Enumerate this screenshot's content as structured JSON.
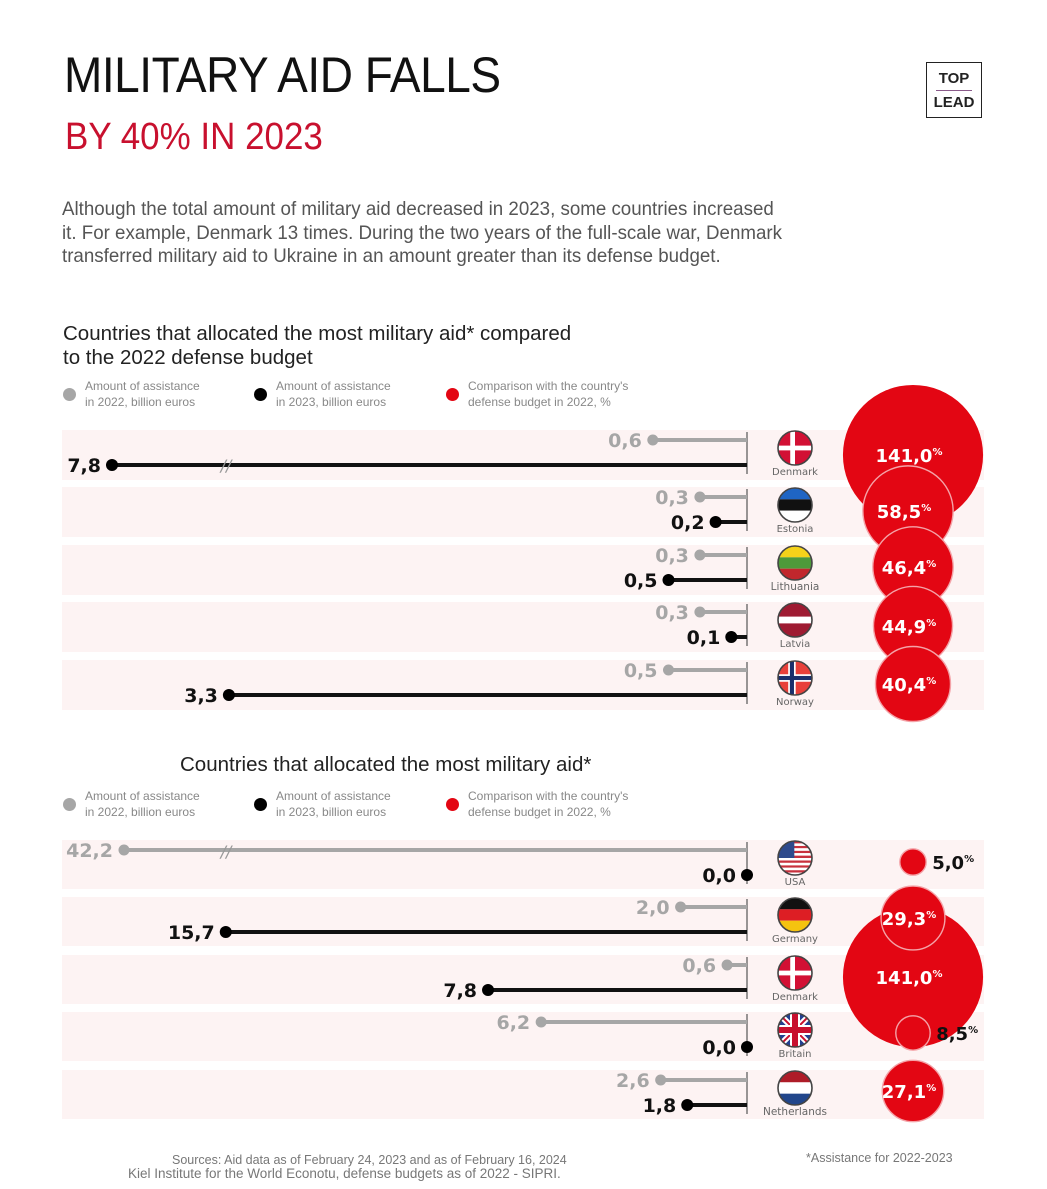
{
  "header": {
    "title": "MILITARY AID FALLS",
    "subtitle": "BY 40% IN 2023",
    "logo_top": "TOP",
    "logo_bottom": "LEAD",
    "intro": "Although the total amount of military aid decreased in 2023, some countries increased it. For example, Denmark 13 times. During the two years of the full-scale war, Denmark transferred military aid to Ukraine in an amount greater than its defense budget."
  },
  "colors": {
    "accent_red": "#e30613",
    "gray_2022": "#a6a6a6",
    "black_2023": "#111111",
    "row_bg": "#fdf3f3"
  },
  "chart_data": [
    {
      "type": "dumbbell",
      "title_line1": "Countries that allocated the most military aid* compared",
      "title_line2": "to the 2022 defense budget",
      "legend": [
        {
          "name": "Amount of assistance in 2022, billion euros",
          "line1": "Amount of assistance",
          "line2": "in 2022, billion euros",
          "color": "#a6a6a6"
        },
        {
          "name": "Amount of assistance in 2023, billion euros",
          "line1": "Amount of assistance",
          "line2": "in 2023, billion euros",
          "color": "#000000"
        },
        {
          "name": "Comparison with the country's defense budget in 2022, %",
          "line1": "Comparison with the country's",
          "line2": "defense budget in 2022, %",
          "color": "#e30613"
        }
      ],
      "axis_break_above": 3.5,
      "rows": [
        {
          "country": "Denmark",
          "flag": "denmark-flag",
          "v2022": 0.6,
          "v2023": 7.8,
          "label2022": "0,6",
          "label2023": "7,8",
          "pct": 141.0,
          "pct_label": "141,0",
          "pct_sign": "%"
        },
        {
          "country": "Estonia",
          "flag": "estonia-flag",
          "v2022": 0.3,
          "v2023": 0.2,
          "label2022": "0,3",
          "label2023": "0,2",
          "pct": 58.5,
          "pct_label": "58,5",
          "pct_sign": "%"
        },
        {
          "country": "Lithuania",
          "flag": "lithuania-flag",
          "v2022": 0.3,
          "v2023": 0.5,
          "label2022": "0,3",
          "label2023": "0,5",
          "pct": 46.4,
          "pct_label": "46,4",
          "pct_sign": "%"
        },
        {
          "country": "Latvia",
          "flag": "latvia-flag",
          "v2022": 0.3,
          "v2023": 0.1,
          "label2022": "0,3",
          "label2023": "0,1",
          "pct": 44.9,
          "pct_label": "44,9",
          "pct_sign": "%"
        },
        {
          "country": "Norway",
          "flag": "norway-flag",
          "v2022": 0.5,
          "v2023": 3.3,
          "label2022": "0,5",
          "label2023": "3,3",
          "pct": 40.4,
          "pct_label": "40,4",
          "pct_sign": "%"
        }
      ]
    },
    {
      "type": "dumbbell",
      "title_line1": "Countries that allocated the most military aid*",
      "title_line2": "",
      "legend": [
        {
          "name": "Amount of assistance in 2022, billion euros",
          "line1": "Amount of assistance",
          "line2": "in 2022, billion euros",
          "color": "#a6a6a6"
        },
        {
          "name": "Amount of assistance in 2023, billion euros",
          "line1": "Amount of assistance",
          "line2": "in 2023, billion euros",
          "color": "#000000"
        },
        {
          "name": "Comparison with the country's defense budget in 2022, %",
          "line1": "Comparison with the country's",
          "line2": "defense budget in 2022, %",
          "color": "#e30613"
        }
      ],
      "axis_break_above": 17,
      "rows": [
        {
          "country": "USA",
          "flag": "usa-flag",
          "v2022": 42.2,
          "v2023": 0.0,
          "label2022": "42,2",
          "label2023": "0,0",
          "pct": 5.0,
          "pct_label": "5,0",
          "pct_sign": "%"
        },
        {
          "country": "Germany",
          "flag": "germany-flag",
          "v2022": 2.0,
          "v2023": 15.7,
          "label2022": "2,0",
          "label2023": "15,7",
          "pct": 29.3,
          "pct_label": "29,3",
          "pct_sign": "%"
        },
        {
          "country": "Denmark",
          "flag": "denmark-flag",
          "v2022": 0.6,
          "v2023": 7.8,
          "label2022": "0,6",
          "label2023": "7,8",
          "pct": 141.0,
          "pct_label": "141,0",
          "pct_sign": "%"
        },
        {
          "country": "Britain",
          "flag": "britain-flag",
          "v2022": 6.2,
          "v2023": 0.0,
          "label2022": "6,2",
          "label2023": "0,0",
          "pct": 8.5,
          "pct_label": "8,5",
          "pct_sign": "%"
        },
        {
          "country": "Netherlands",
          "flag": "netherlands-flag",
          "v2022": 2.6,
          "v2023": 1.8,
          "label2022": "2,6",
          "label2023": "1,8",
          "pct": 27.1,
          "pct_label": "27,1",
          "pct_sign": "%"
        }
      ]
    }
  ],
  "footer": {
    "sources_line1": "Sources: Aid data as of February 24, 2023 and as of February 16, 2024",
    "sources_line2": "Kiel Institute for the World Econotu, defense budgets as of 2022 - SIPRI.",
    "footnote": "*Assistance for 2022-2023"
  }
}
